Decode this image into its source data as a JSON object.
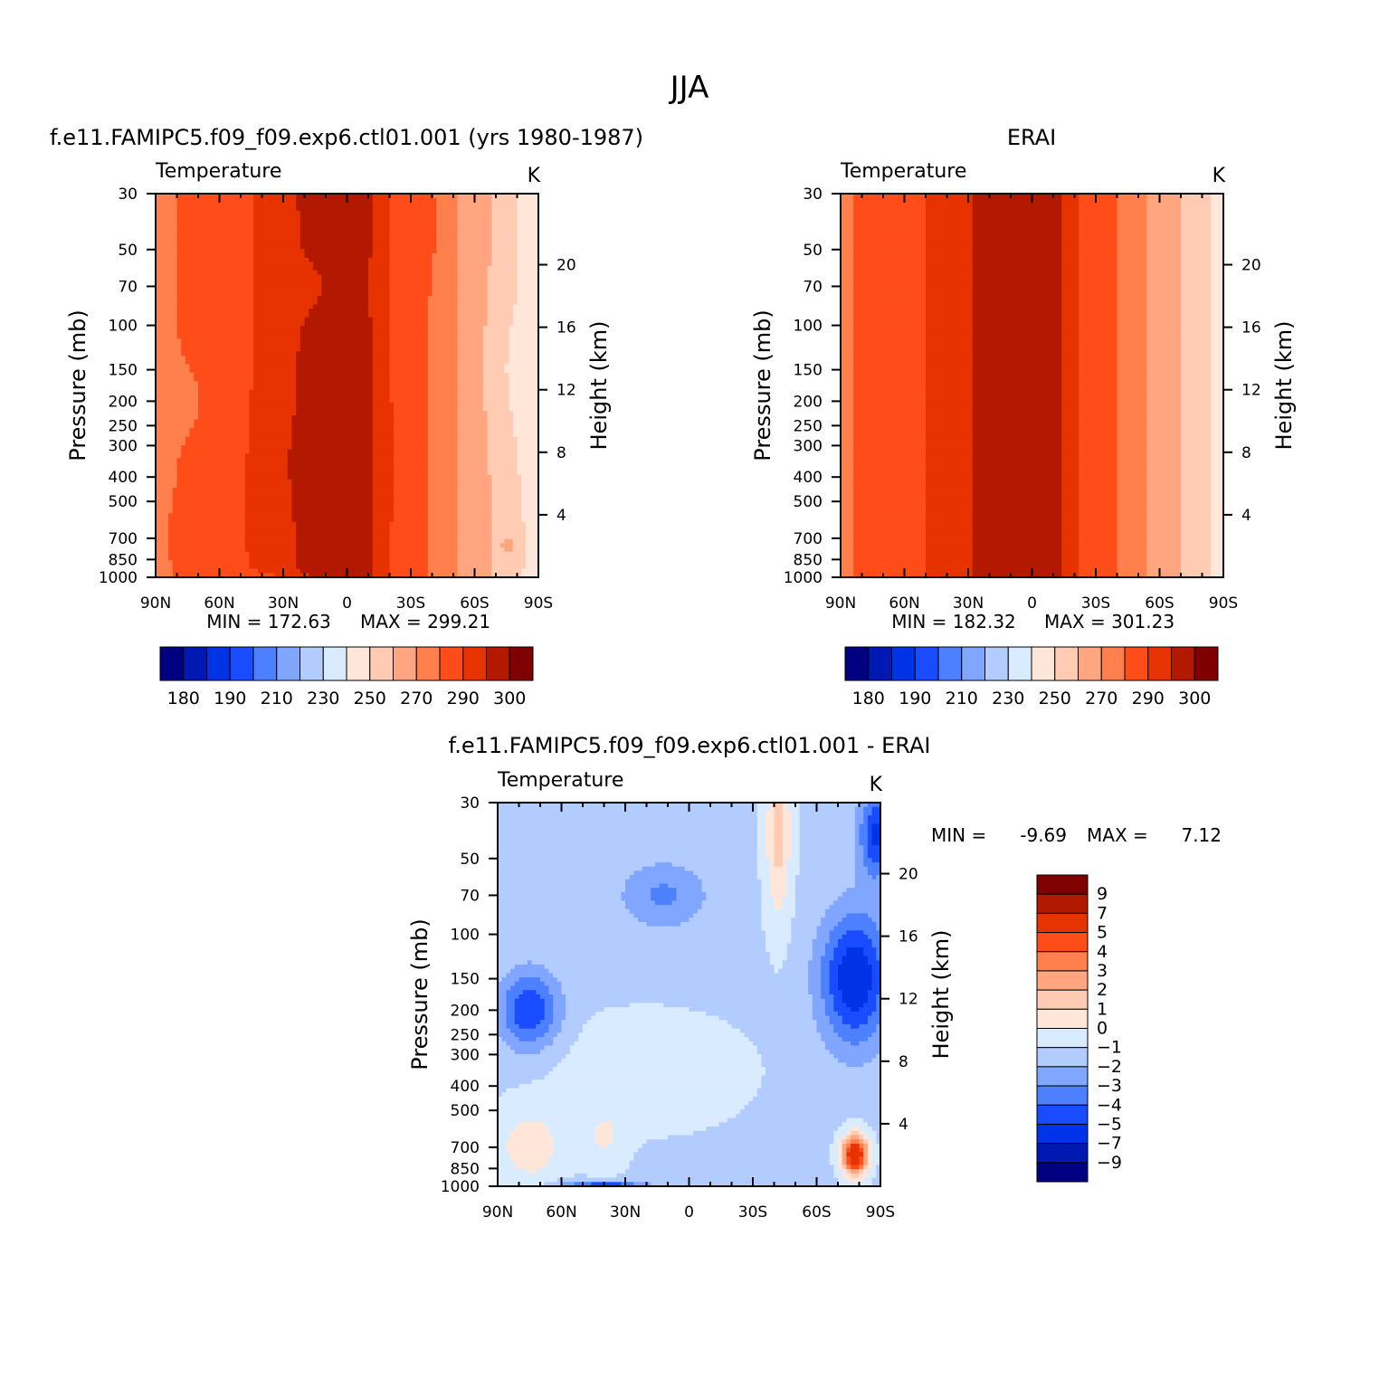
{
  "figure": {
    "title": "JJA"
  },
  "palettes": {
    "absolute": [
      "#000080",
      "#0019b3",
      "#0033e6",
      "#1a4cff",
      "#4d80ff",
      "#80a6ff",
      "#b3ccff",
      "#d9ebff",
      "#ffe6d9",
      "#ffccb3",
      "#ffa680",
      "#ff804d",
      "#ff4d1a",
      "#e63300",
      "#b31900",
      "#800000"
    ],
    "difference": [
      "#000080",
      "#0019b3",
      "#0033e6",
      "#1a4cff",
      "#4d80ff",
      "#80a6ff",
      "#b3ccff",
      "#d9ebff",
      "#ffe6d9",
      "#ffccb3",
      "#ffa680",
      "#ff804d",
      "#ff4d1a",
      "#e63300",
      "#b31900",
      "#800000"
    ]
  },
  "chart_data": [
    {
      "id": "model",
      "type": "contour",
      "title": "f.e11.FAMIPC5.f09_f09.exp6.ctl01.001 (yrs 1980-1987)",
      "variable": "Temperature",
      "units": "K",
      "xlabel": "",
      "ylabel": "Pressure (mb)",
      "y2label": "Height (km)",
      "x_ticks": [
        "90N",
        "60N",
        "30N",
        "0",
        "30S",
        "60S",
        "90S"
      ],
      "y_ticks": [
        "30",
        "50",
        "70",
        "100",
        "150",
        "200",
        "250",
        "300",
        "400",
        "500",
        "700",
        "850",
        "1000"
      ],
      "y2_ticks": [
        "20",
        "16",
        "12",
        "8",
        "4"
      ],
      "min_label": "MIN = 172.63",
      "max_label": "MAX = 299.21",
      "min": 172.63,
      "max": 299.21,
      "colorbar_labels": [
        "180",
        "190",
        "210",
        "230",
        "250",
        "270",
        "290",
        "300"
      ],
      "levels": [
        180,
        185,
        190,
        200,
        210,
        220,
        230,
        240,
        250,
        260,
        270,
        280,
        290,
        295,
        300
      ]
    },
    {
      "id": "obs",
      "type": "contour",
      "title": "ERAI",
      "variable": "Temperature",
      "units": "K",
      "ylabel": "Pressure (mb)",
      "y2label": "Height (km)",
      "x_ticks": [
        "90N",
        "60N",
        "30N",
        "0",
        "30S",
        "60S",
        "90S"
      ],
      "y_ticks": [
        "30",
        "50",
        "70",
        "100",
        "150",
        "200",
        "250",
        "300",
        "400",
        "500",
        "700",
        "850",
        "1000"
      ],
      "y2_ticks": [
        "20",
        "16",
        "12",
        "8",
        "4"
      ],
      "min_label": "MIN = 182.32",
      "max_label": "MAX = 301.23",
      "min": 182.32,
      "max": 301.23,
      "colorbar_labels": [
        "180",
        "190",
        "210",
        "230",
        "250",
        "270",
        "290",
        "300"
      ],
      "levels": [
        180,
        185,
        190,
        200,
        210,
        220,
        230,
        240,
        250,
        260,
        270,
        280,
        290,
        295,
        300
      ]
    },
    {
      "id": "diff",
      "type": "contour",
      "title": "f.e11.FAMIPC5.f09_f09.exp6.ctl01.001 - ERAI",
      "variable": "Temperature",
      "units": "K",
      "ylabel": "Pressure (mb)",
      "y2label": "Height (km)",
      "x_ticks": [
        "90N",
        "60N",
        "30N",
        "0",
        "30S",
        "60S",
        "90S"
      ],
      "y_ticks": [
        "30",
        "50",
        "70",
        "100",
        "150",
        "200",
        "250",
        "300",
        "400",
        "500",
        "700",
        "850",
        "1000"
      ],
      "y2_ticks": [
        "20",
        "16",
        "12",
        "8",
        "4"
      ],
      "min_label": "MIN =",
      "min_value": "-9.69",
      "max_label": "MAX =",
      "max_value": "7.12",
      "min": -9.69,
      "max": 7.12,
      "colorbar_labels": [
        "9",
        "7",
        "5",
        "4",
        "3",
        "2",
        "1",
        "0",
        "-1",
        "-2",
        "-3",
        "-4",
        "-5",
        "-7",
        "-9"
      ],
      "levels": [
        -9,
        -7,
        -5,
        -4,
        -3,
        -2,
        -1,
        0,
        1,
        2,
        3,
        4,
        5,
        7,
        9
      ]
    }
  ]
}
